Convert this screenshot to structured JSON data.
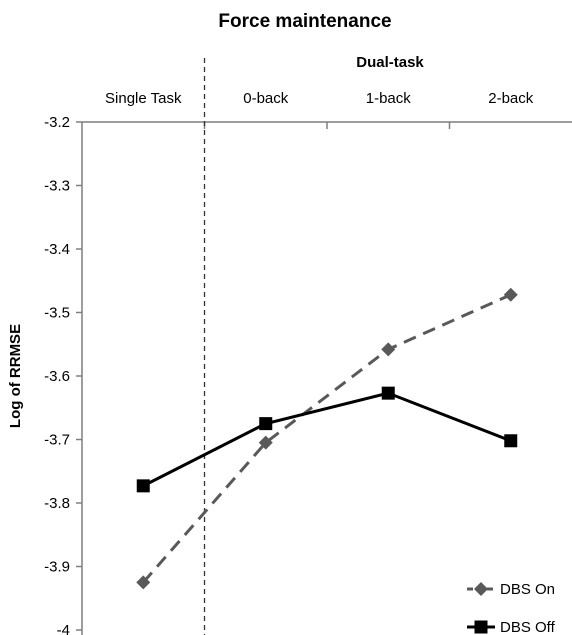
{
  "chart_data": {
    "type": "line",
    "title": "Force maintenance",
    "group_label": "Dual-task",
    "categories": [
      "Single Task",
      "0-back",
      "1-back",
      "2-back"
    ],
    "xlabel": "",
    "ylabel": "Log of RRMSE",
    "ylim": [
      -4,
      -3.2
    ],
    "yticks": [
      "-4",
      "-3.9",
      "-3.8",
      "-3.7",
      "-3.6",
      "-3.5",
      "-3.4",
      "-3.3",
      "-3.2"
    ],
    "grid": false,
    "legend_position": "bottom-right",
    "series": [
      {
        "name": "DBS On",
        "values": [
          -3.925,
          -3.705,
          -3.558,
          -3.472
        ],
        "color": "#595959",
        "line_style": "dashed",
        "marker": "diamond"
      },
      {
        "name": "DBS Off",
        "values": [
          -3.773,
          -3.675,
          -3.627,
          -3.702
        ],
        "color": "#000000",
        "line_style": "solid",
        "marker": "square"
      }
    ]
  }
}
